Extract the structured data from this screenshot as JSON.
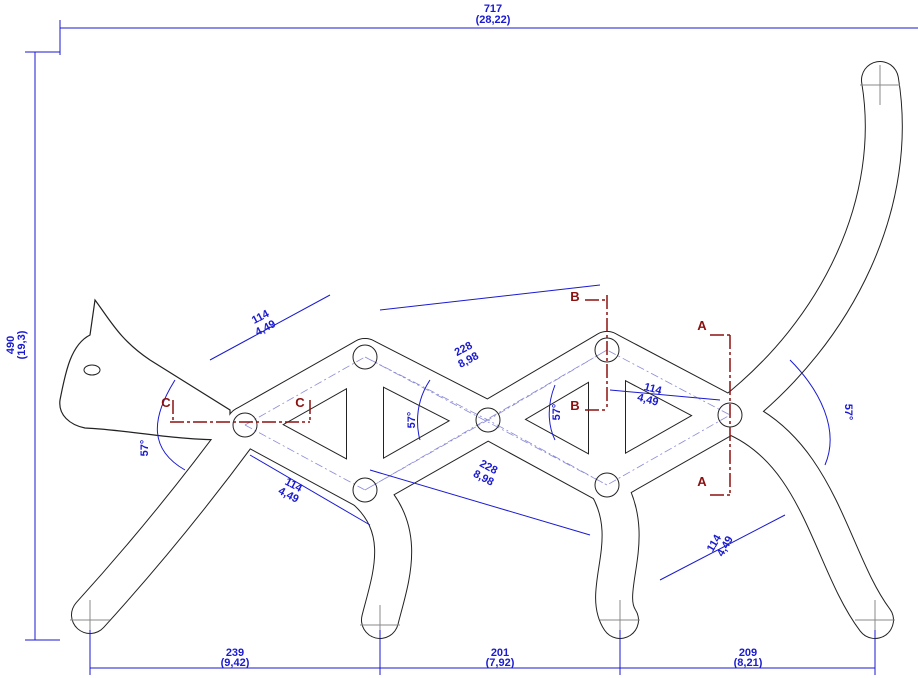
{
  "overall": {
    "width": {
      "value": "717",
      "alt": "(28,22)"
    },
    "height": {
      "value": "490",
      "alt": "(19,3)"
    }
  },
  "bottom_dimensions": [
    {
      "value": "239",
      "alt": "(9,42)"
    },
    {
      "value": "201",
      "alt": "(7,92)"
    },
    {
      "value": "209",
      "alt": "(8,21)"
    }
  ],
  "link_dimensions": [
    {
      "value": "114",
      "alt": "4,49"
    },
    {
      "value": "228",
      "alt": "8,98"
    },
    {
      "value": "114",
      "alt": "4,49"
    },
    {
      "value": "228",
      "alt": "8,98"
    },
    {
      "value": "114",
      "alt": "4,49"
    },
    {
      "value": "114",
      "alt": "4,49"
    }
  ],
  "angles": [
    "57°",
    "57°",
    "57°",
    "57°"
  ],
  "section_marks": [
    "A",
    "A",
    "B",
    "B",
    "C",
    "C"
  ]
}
